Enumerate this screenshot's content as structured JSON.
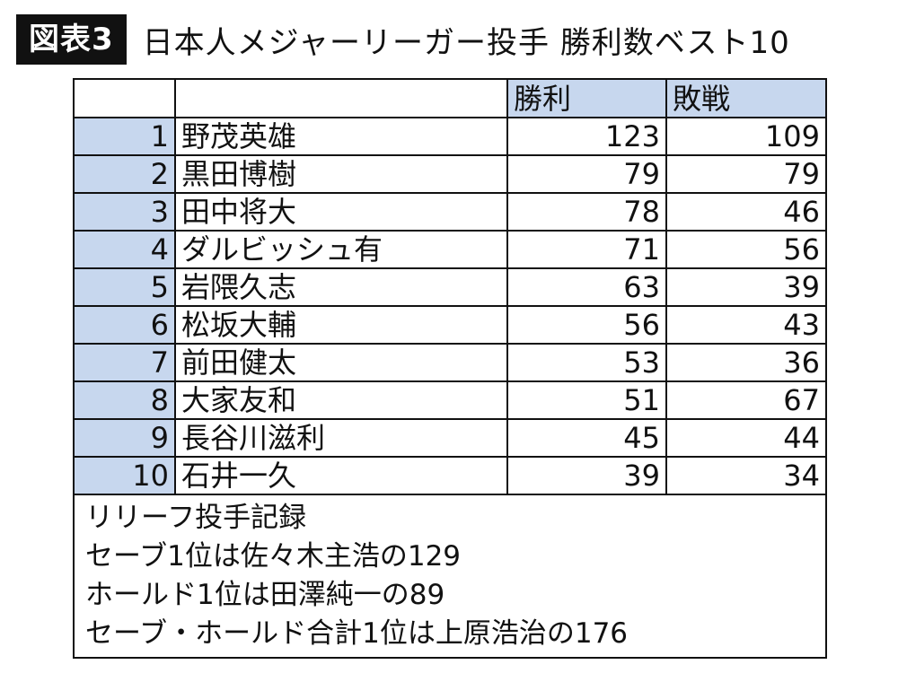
{
  "figure": {
    "badge": "図表3",
    "title": "日本人メジャーリーガー投手 勝利数ベスト10"
  },
  "table": {
    "headers": {
      "rank": "",
      "name": "",
      "wins": "勝利",
      "losses": "敗戦"
    },
    "rows": [
      {
        "rank": "1",
        "name": "野茂英雄",
        "wins": "123",
        "losses": "109"
      },
      {
        "rank": "2",
        "name": "黒田博樹",
        "wins": "79",
        "losses": "79"
      },
      {
        "rank": "3",
        "name": "田中将大",
        "wins": "78",
        "losses": "46"
      },
      {
        "rank": "4",
        "name": "ダルビッシュ有",
        "wins": "71",
        "losses": "56"
      },
      {
        "rank": "5",
        "name": "岩隈久志",
        "wins": "63",
        "losses": "39"
      },
      {
        "rank": "6",
        "name": "松坂大輔",
        "wins": "56",
        "losses": "43"
      },
      {
        "rank": "7",
        "name": "前田健太",
        "wins": "53",
        "losses": "36"
      },
      {
        "rank": "8",
        "name": "大家友和",
        "wins": "51",
        "losses": "67"
      },
      {
        "rank": "9",
        "name": "長谷川滋利",
        "wins": "45",
        "losses": "44"
      },
      {
        "rank": "10",
        "name": "石井一久",
        "wins": "39",
        "losses": "34"
      }
    ],
    "notes": [
      "リリーフ投手記録",
      "セーブ1位は佐々木主浩の129",
      "ホールド1位は田澤純一の89",
      "セーブ・ホールド合計1位は上原浩治の176"
    ]
  }
}
